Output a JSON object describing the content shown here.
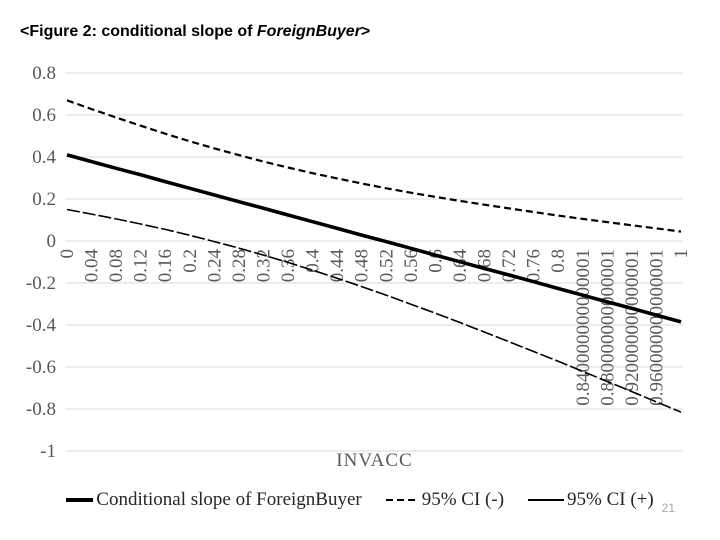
{
  "slide": {
    "page_number": "21"
  },
  "title": {
    "prefix": "<Figure 2: conditional slope of ",
    "emphasis": "ForeignBuyer",
    "suffix": ">"
  },
  "colors": {
    "line": "#000000",
    "grid": "#d9d9d9",
    "tick_text": "#595959",
    "legend_text": "#262626",
    "page_number": "#a8a8a8"
  },
  "chart_data": {
    "type": "line",
    "title": "<Figure 2: conditional slope of ForeignBuyer>",
    "grid": true,
    "legend_position": "bottom",
    "x_axis": {
      "label": "INVACC",
      "range": [
        0,
        1
      ],
      "tick_labels": [
        "0",
        "0.04",
        "0.08",
        "0.12",
        "0.16",
        "0.2",
        "0.24",
        "0.28",
        "0.32",
        "0.36",
        "0.4",
        "0.44",
        "0.48",
        "0.52",
        "0.56",
        "0.6",
        "0.64",
        "0.68",
        "0.72",
        "0.76",
        "0.8",
        "0.840000000000001",
        "0.880000000000001",
        "0.920000000000001",
        "0.960000000000001",
        "1"
      ]
    },
    "y_axis": {
      "label": "",
      "range": [
        -1,
        0.8
      ],
      "tick_labels": [
        "0.8",
        "0.6",
        "0.4",
        "0.2",
        "0",
        "-0.2",
        "-0.4",
        "-0.6",
        "-0.8",
        "-1"
      ],
      "tick_values": [
        0.8,
        0.6,
        0.4,
        0.2,
        0,
        -0.2,
        -0.4,
        -0.6,
        -0.8,
        -1
      ]
    },
    "x": [
      0,
      0.04,
      0.08,
      0.12,
      0.16,
      0.2,
      0.24,
      0.28,
      0.32,
      0.36,
      0.4,
      0.44,
      0.48,
      0.52,
      0.56,
      0.6,
      0.64,
      0.68,
      0.72,
      0.76,
      0.8,
      0.84,
      0.88,
      0.92,
      0.96,
      1
    ],
    "series": [
      {
        "name": "Conditional slope of ForeignBuyer",
        "style": "solid-thick",
        "values": [
          0.41,
          0.378,
          0.346,
          0.315,
          0.283,
          0.251,
          0.219,
          0.187,
          0.156,
          0.124,
          0.092,
          0.06,
          0.028,
          -0.003,
          -0.035,
          -0.067,
          -0.099,
          -0.131,
          -0.162,
          -0.194,
          -0.226,
          -0.258,
          -0.29,
          -0.321,
          -0.353,
          -0.385
        ]
      },
      {
        "name": "95% CI (-)",
        "style": "dashed",
        "values": [
          0.67,
          0.628,
          0.588,
          0.549,
          0.511,
          0.475,
          0.441,
          0.409,
          0.378,
          0.35,
          0.323,
          0.298,
          0.274,
          0.251,
          0.23,
          0.21,
          0.191,
          0.173,
          0.155,
          0.138,
          0.121,
          0.105,
          0.09,
          0.075,
          0.06,
          0.045
        ]
      },
      {
        "name": "95% CI (+)",
        "style": "solid-thin",
        "values": [
          0.15,
          0.128,
          0.105,
          0.081,
          0.055,
          0.027,
          -0.003,
          -0.034,
          -0.067,
          -0.102,
          -0.139,
          -0.177,
          -0.217,
          -0.258,
          -0.301,
          -0.344,
          -0.388,
          -0.434,
          -0.48,
          -0.526,
          -0.573,
          -0.621,
          -0.669,
          -0.717,
          -0.766,
          -0.815
        ]
      }
    ]
  }
}
